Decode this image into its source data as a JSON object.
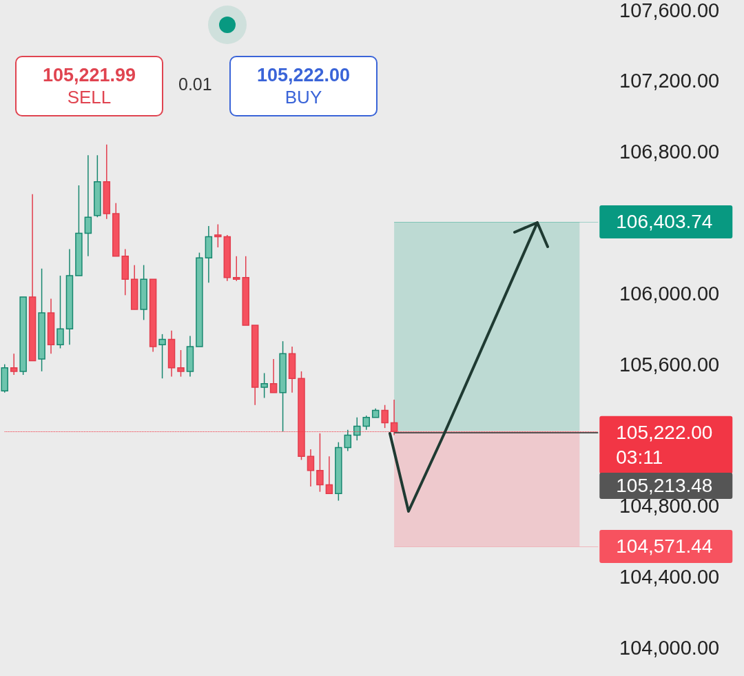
{
  "chart_data": {
    "type": "candlestick",
    "categories": [
      null,
      null,
      null,
      null,
      null,
      null,
      null,
      null,
      null,
      null,
      null,
      null,
      null,
      null,
      null,
      null,
      null,
      null,
      null,
      null,
      null,
      null,
      null,
      null,
      null,
      null,
      null,
      null,
      null,
      null,
      null,
      null,
      null,
      null,
      null,
      null,
      null,
      null,
      null,
      null,
      null,
      null,
      null,
      null,
      null,
      null,
      null,
      null,
      null,
      null,
      null,
      null,
      null,
      null,
      null,
      null,
      null,
      null,
      null,
      null,
      null,
      null,
      null,
      null,
      null
    ],
    "ohlc": [
      [
        105450,
        105600,
        105440,
        105580
      ],
      [
        105580,
        105660,
        105540,
        105560
      ],
      [
        105560,
        105980,
        105540,
        105980
      ],
      [
        105980,
        106560,
        105620,
        105620
      ],
      [
        105630,
        106140,
        105560,
        105890
      ],
      [
        105890,
        105970,
        105660,
        105710
      ],
      [
        105710,
        106100,
        105690,
        105800
      ],
      [
        105800,
        106250,
        105710,
        106100
      ],
      [
        106100,
        106610,
        106100,
        106340
      ],
      [
        106340,
        106780,
        106210,
        106430
      ],
      [
        106440,
        106780,
        106430,
        106630
      ],
      [
        106630,
        106840,
        106420,
        106450
      ],
      [
        106450,
        106510,
        106210,
        106210
      ],
      [
        106210,
        106250,
        105990,
        106080
      ],
      [
        106080,
        106160,
        105910,
        105910
      ],
      [
        105910,
        106160,
        105850,
        106080
      ],
      [
        106080,
        106080,
        105670,
        105700
      ],
      [
        105710,
        105770,
        105520,
        105740
      ],
      [
        105740,
        105790,
        105530,
        105580
      ],
      [
        105580,
        105680,
        105530,
        105560
      ],
      [
        105560,
        105760,
        105530,
        105700
      ],
      [
        105700,
        106230,
        105700,
        106200
      ],
      [
        106200,
        106380,
        106060,
        106320
      ],
      [
        106330,
        106390,
        106260,
        106320
      ],
      [
        106320,
        106330,
        106070,
        106090
      ],
      [
        106090,
        106210,
        106070,
        106080
      ],
      [
        106090,
        106210,
        105820,
        105820
      ],
      [
        105820,
        105820,
        105370,
        105470
      ],
      [
        105470,
        105550,
        105410,
        105490
      ],
      [
        105490,
        105630,
        105440,
        105440
      ],
      [
        105440,
        105730,
        105220,
        105660
      ],
      [
        105660,
        105700,
        105440,
        105520
      ],
      [
        105520,
        105560,
        105060,
        105080
      ],
      [
        105080,
        105120,
        104910,
        105000
      ],
      [
        105000,
        105210,
        104880,
        104920
      ],
      [
        104920,
        105080,
        104870,
        104870
      ],
      [
        104870,
        105160,
        104830,
        105130
      ],
      [
        105130,
        105230,
        105110,
        105200
      ],
      [
        105200,
        105300,
        105170,
        105250
      ],
      [
        105250,
        105310,
        105230,
        105300
      ],
      [
        105300,
        105350,
        105300,
        105340
      ],
      [
        105340,
        105370,
        105240,
        105270
      ],
      [
        105270,
        105400,
        105200,
        105220
      ],
      null,
      null,
      null,
      null,
      null,
      null,
      null,
      null,
      null,
      null,
      null,
      null,
      null,
      null,
      null,
      null,
      null,
      null,
      null,
      null,
      null,
      null
    ],
    "ylim": [
      103840,
      107650
    ],
    "yticks": [
      {
        "value": 104000,
        "label": "104,000.00"
      },
      {
        "value": 104400,
        "label": "104,400.00"
      },
      {
        "value": 104800,
        "label": "104,800.00"
      },
      {
        "value": 105600,
        "label": "105,600.00"
      },
      {
        "value": 106000,
        "label": "106,000.00"
      },
      {
        "value": 106800,
        "label": "106,800.00"
      },
      {
        "value": 107200,
        "label": "107,200.00"
      },
      {
        "value": 107600,
        "label": "107,600.00"
      }
    ],
    "tick_labels": "y",
    "grid": false,
    "ref_lines": [
      {
        "axis": "y",
        "value": 105222,
        "label": "105,222.00",
        "color": "#f23645",
        "line_style": "dotted"
      },
      {
        "axis": "y",
        "value": 106403.74,
        "label": "106,403.74",
        "color": "#089981",
        "line_style": "solid"
      },
      {
        "axis": "y",
        "value": 105213.48,
        "label": "105,213.48",
        "color": "#555555",
        "line_style": "solid"
      },
      {
        "axis": "y",
        "value": 104571.44,
        "label": "104,571.44",
        "color": "#f7525f",
        "line_style": "solid"
      }
    ],
    "bands": [
      {
        "axis": "y",
        "from": 105222,
        "to": 106403.74,
        "color": "#bddad3"
      },
      {
        "axis": "y",
        "from": 104571.44,
        "to": 105222,
        "color": "#eec9cd"
      }
    ],
    "annotations": [
      "105,221.99",
      "SELL",
      "0.01",
      "105,222.00",
      "BUY",
      "03:11"
    ]
  }
}
